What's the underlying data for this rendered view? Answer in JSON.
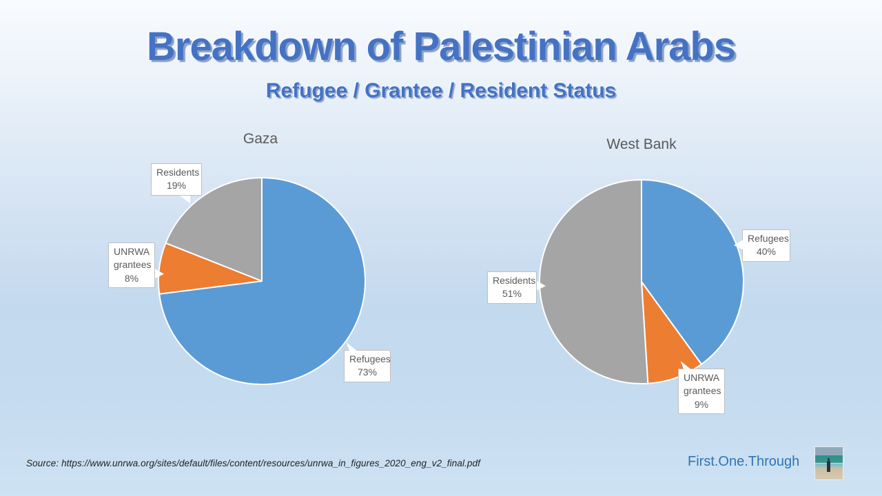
{
  "slide": {
    "title": "Breakdown of Palestinian Arabs",
    "subtitle": "Refugee / Grantee / Resident Status",
    "source": "Source: https://www.unrwa.org/sites/default/files/content/resources/unrwa_in_figures_2020_eng_v2_final.pdf",
    "brand": "First.One.Through"
  },
  "colors": {
    "refugees_blue": "#5B9BD5",
    "unrwa_orange": "#ED7D31",
    "residents_grey": "#A5A5A5",
    "title_blue": "#4472C4",
    "brand_blue": "#2E74B5",
    "chart_text_grey": "#595959"
  },
  "chart_data": [
    {
      "type": "pie",
      "title": "Gaza",
      "labels": [
        "Refugees",
        "UNRWA grantees",
        "Residents"
      ],
      "values": [
        73,
        8,
        19
      ],
      "colors": [
        "#5B9BD5",
        "#ED7D31",
        "#A5A5A5"
      ],
      "start_angle_deg": 0,
      "direction": "clockwise",
      "legend": "none",
      "data_labels": [
        {
          "lines": [
            "Refugees",
            "73%"
          ]
        },
        {
          "lines": [
            "UNRWA",
            "grantees",
            "8%"
          ]
        },
        {
          "lines": [
            "Residents",
            "19%"
          ]
        }
      ]
    },
    {
      "type": "pie",
      "title": "West Bank",
      "labels": [
        "Refugees",
        "UNRWA grantees",
        "Residents"
      ],
      "values": [
        40,
        9,
        51
      ],
      "colors": [
        "#5B9BD5",
        "#ED7D31",
        "#A5A5A5"
      ],
      "start_angle_deg": 0,
      "direction": "clockwise",
      "legend": "none",
      "data_labels": [
        {
          "lines": [
            "Refugees",
            "40%"
          ]
        },
        {
          "lines": [
            "UNRWA",
            "grantees",
            "9%"
          ]
        },
        {
          "lines": [
            "Residents",
            "51%"
          ]
        }
      ]
    }
  ]
}
